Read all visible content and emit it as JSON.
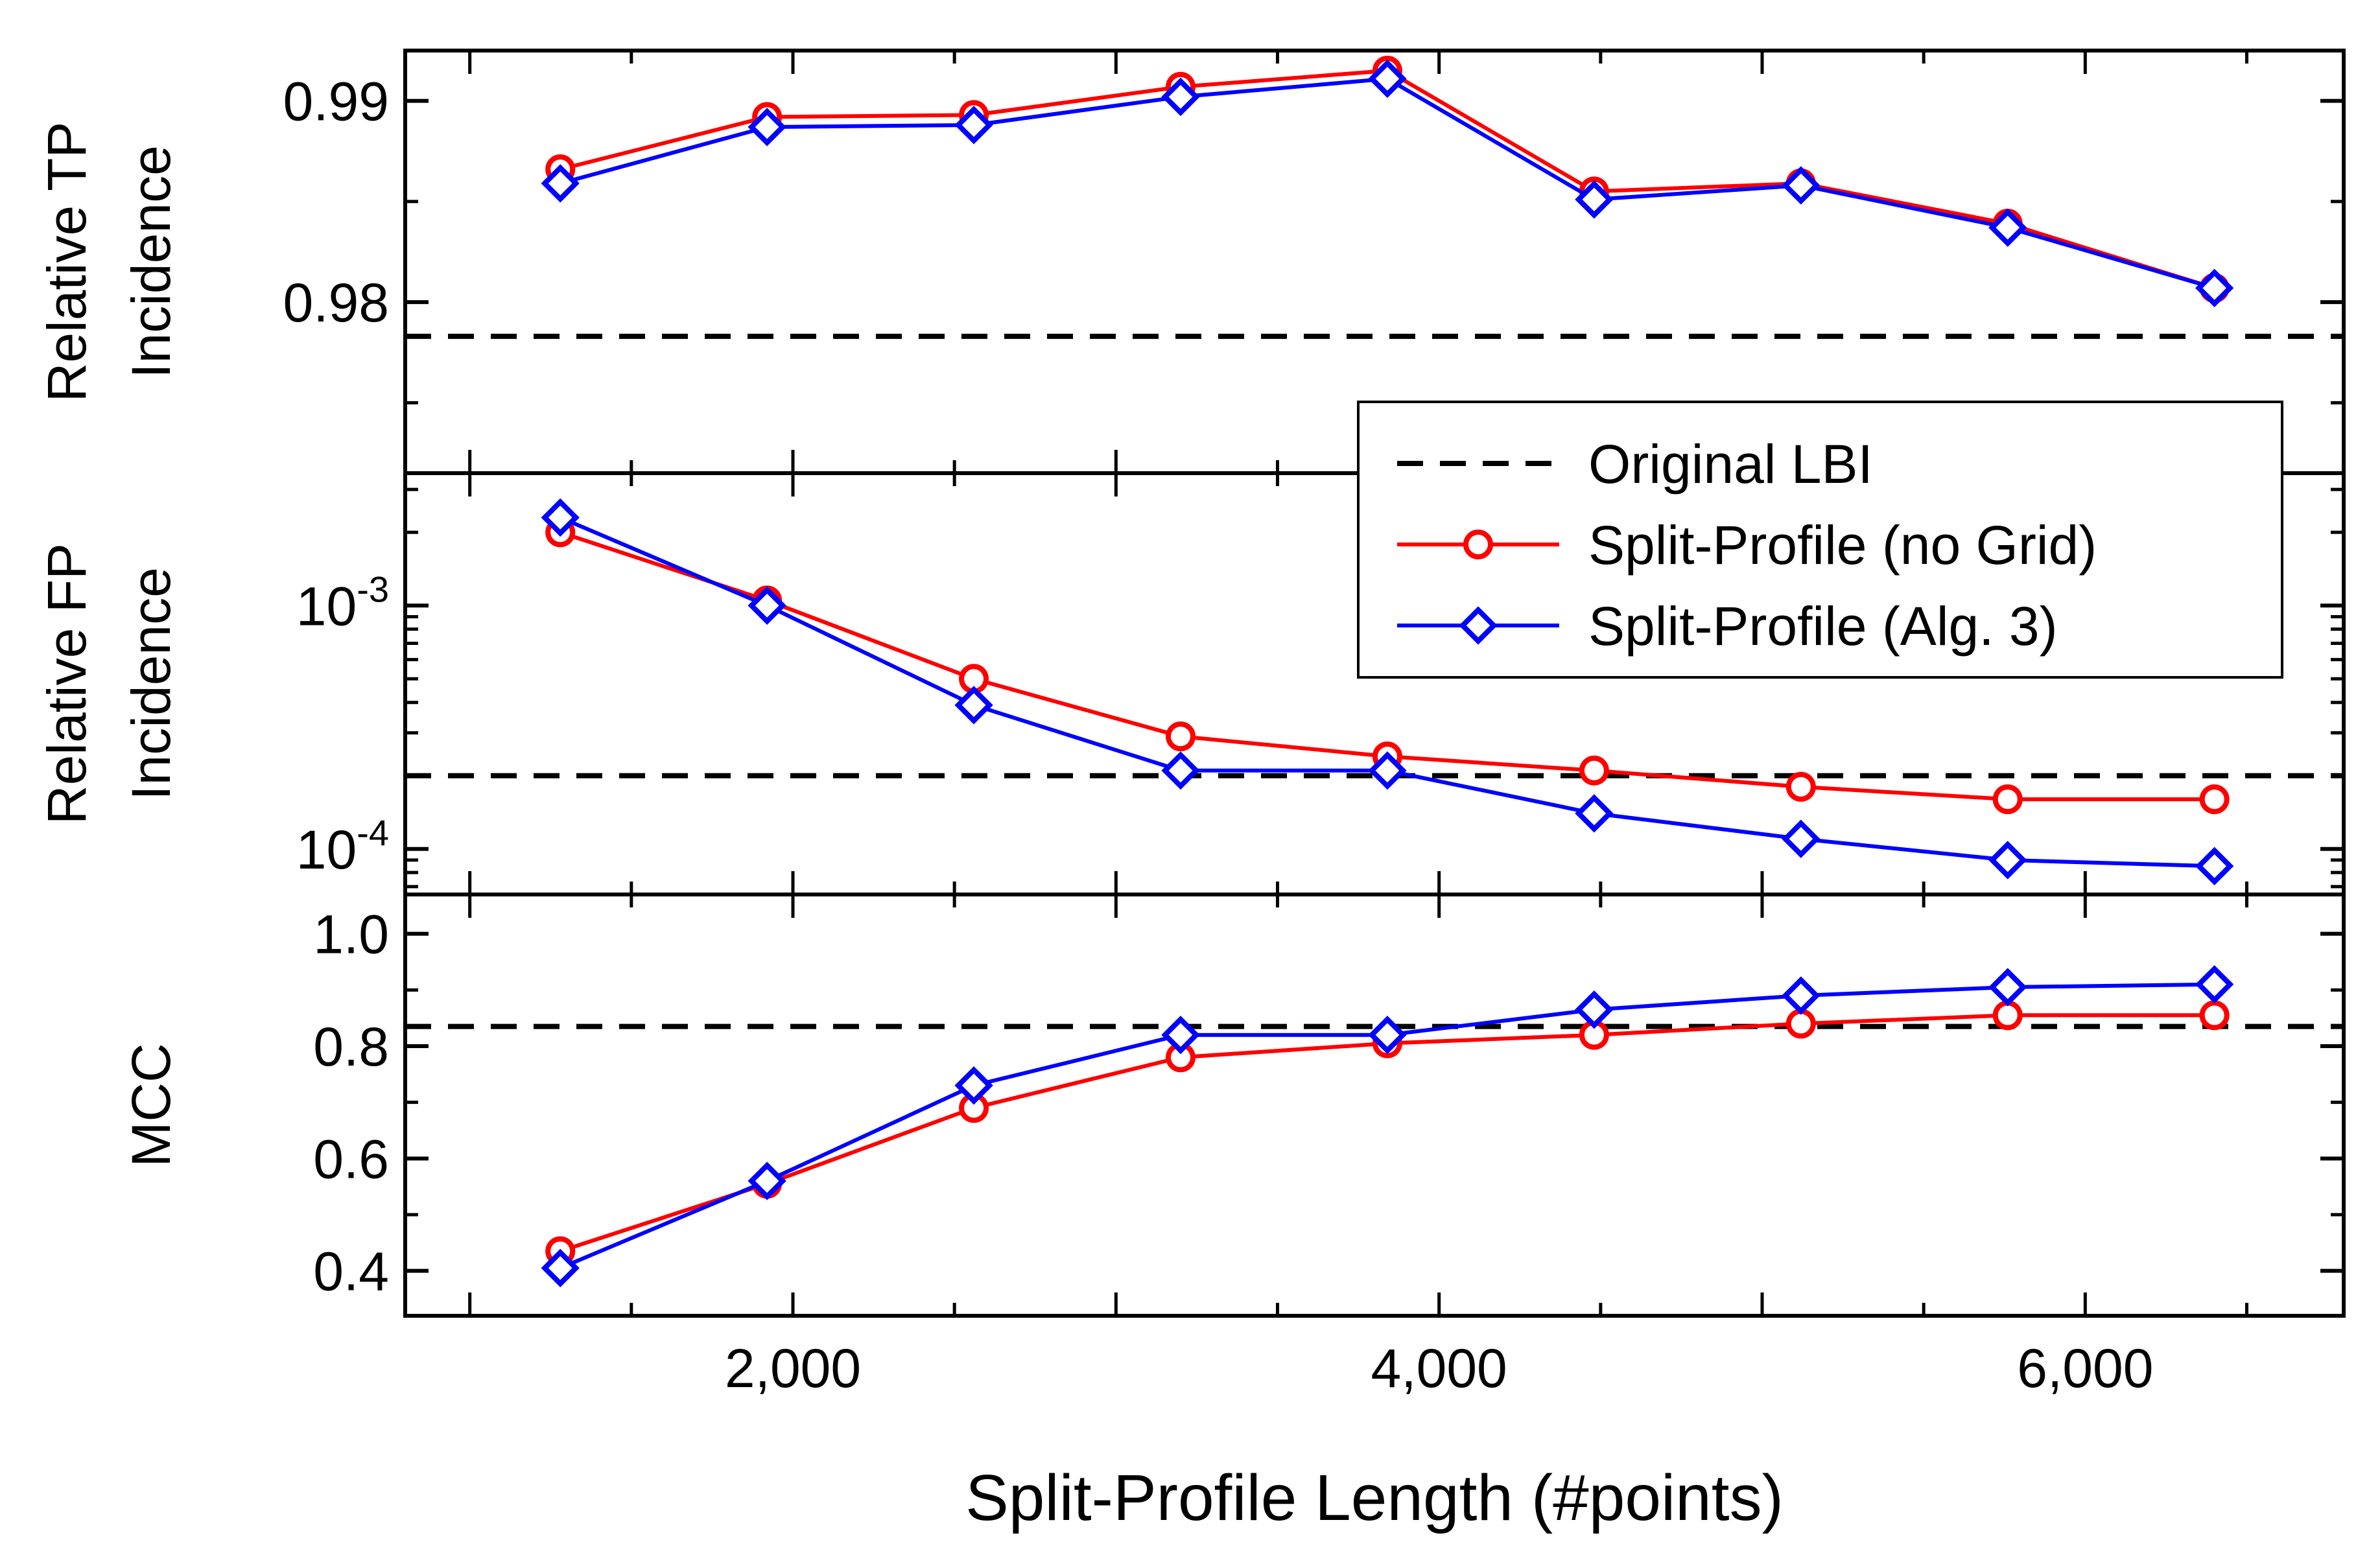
{
  "chart_data": {
    "type": "line",
    "xlabel": "Split-Profile Length (#points)",
    "x": [
      1280,
      1920,
      2560,
      3200,
      3840,
      4480,
      5120,
      5760,
      6400
    ],
    "xlim": [
      800,
      6800
    ],
    "xticks": [
      2000,
      4000,
      6000
    ],
    "xtick_labels": [
      "2,000",
      "4,000",
      "6,000"
    ],
    "legend": {
      "placement": "center-right",
      "entries": [
        {
          "key": "baseline",
          "label": "Original LBI"
        },
        {
          "key": "nogrid",
          "label": "Split-Profile (no Grid)"
        },
        {
          "key": "alg3",
          "label": "Split-Profile (Alg. 3)"
        }
      ]
    },
    "colors": {
      "baseline": "#000000",
      "nogrid": "#ff0000",
      "alg3": "#0000ff"
    },
    "panels": [
      {
        "id": "tp",
        "ylabel": [
          "Relative TP",
          "Incidence"
        ],
        "yscale": "linear",
        "ylim": [
          0.9715,
          0.9925
        ],
        "yticks": [
          0.98,
          0.99
        ],
        "ytick_labels": [
          "0.98",
          "0.99"
        ],
        "baseline": 0.9783,
        "series": [
          {
            "key": "nogrid",
            "name": "Split-Profile (no Grid)",
            "values": [
              0.9866,
              0.9892,
              0.9893,
              0.9907,
              0.9915,
              0.9855,
              0.9859,
              0.9839,
              0.9807
            ]
          },
          {
            "key": "alg3",
            "name": "Split-Profile (Alg. 3)",
            "values": [
              0.9859,
              0.9887,
              0.9888,
              0.9902,
              0.9911,
              0.9851,
              0.9858,
              0.9837,
              0.9807
            ]
          }
        ]
      },
      {
        "id": "fp",
        "ylabel": [
          "Relative FP",
          "Incidence"
        ],
        "yscale": "log",
        "ylim": [
          6.5e-05,
          0.0035
        ],
        "yticks": [
          0.0001,
          0.001
        ],
        "ytick_labels": [
          {
            "base": "10",
            "exp": "-4"
          },
          {
            "base": "10",
            "exp": "-3"
          }
        ],
        "baseline": 0.0002,
        "series": [
          {
            "key": "nogrid",
            "name": "Split-Profile (no Grid)",
            "values": [
              0.002,
              0.00105,
              0.0005,
              0.00029,
              0.00024,
              0.00021,
              0.00018,
              0.00016,
              0.00016
            ]
          },
          {
            "key": "alg3",
            "name": "Split-Profile (Alg. 3)",
            "values": [
              0.0023,
              0.001,
              0.00039,
              0.00021,
              0.00021,
              0.00014,
              0.00011,
              9e-05,
              8.5e-05
            ]
          }
        ]
      },
      {
        "id": "mcc",
        "ylabel": [
          "MCC"
        ],
        "yscale": "linear",
        "ylim": [
          0.32,
          1.07
        ],
        "yticks": [
          0.4,
          0.6,
          0.8,
          1.0
        ],
        "ytick_labels": [
          "0.4",
          "0.6",
          "0.8",
          "1.0"
        ],
        "baseline": 0.835,
        "series": [
          {
            "key": "nogrid",
            "name": "Split-Profile (no Grid)",
            "values": [
              0.435,
              0.555,
              0.69,
              0.78,
              0.805,
              0.82,
              0.84,
              0.855,
              0.855
            ]
          },
          {
            "key": "alg3",
            "name": "Split-Profile (Alg. 3)",
            "values": [
              0.405,
              0.56,
              0.73,
              0.82,
              0.82,
              0.865,
              0.89,
              0.905,
              0.91
            ]
          }
        ]
      }
    ]
  }
}
